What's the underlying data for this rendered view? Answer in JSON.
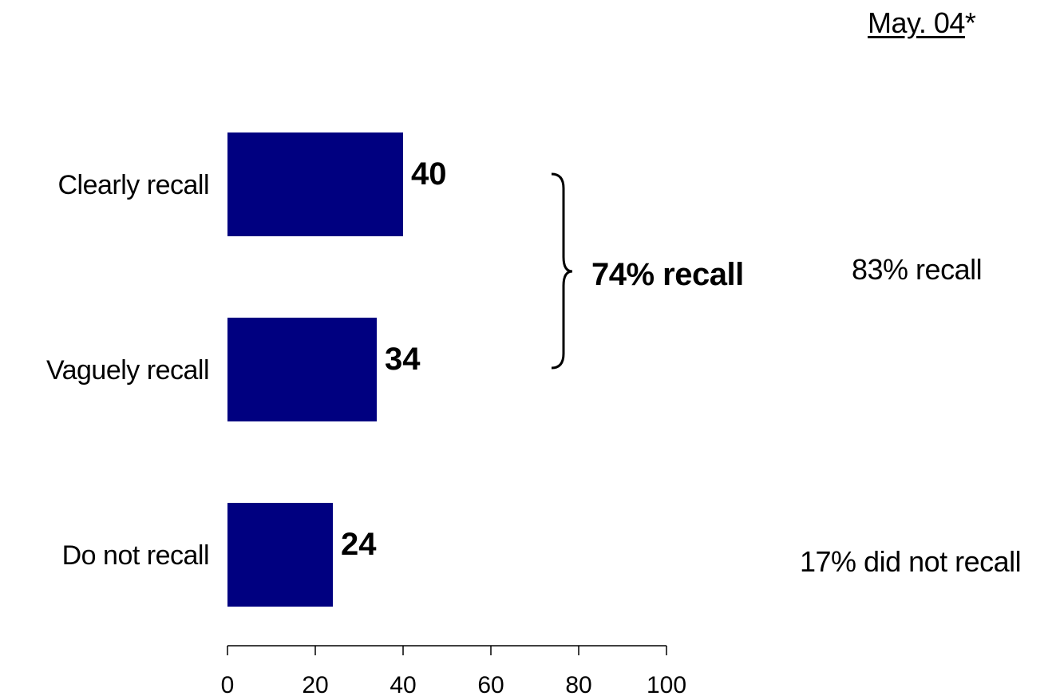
{
  "header": {
    "period": "May. 04",
    "footnote_mark": "*"
  },
  "chart_data": {
    "type": "bar",
    "orientation": "horizontal",
    "categories": [
      "Clearly recall",
      "Vaguely recall",
      "Do not recall"
    ],
    "values": [
      40,
      34,
      24
    ],
    "value_labels": [
      "40",
      "34",
      "24"
    ],
    "xlim": [
      0,
      100
    ],
    "xticks": [
      0,
      20,
      40,
      60,
      80,
      100
    ],
    "bar_color": "#000080",
    "grid": false,
    "legend": "none"
  },
  "annotations": {
    "bracket_label": "74% recall",
    "comparison_recall": "83% recall",
    "comparison_not_recall": "17% did not recall"
  }
}
